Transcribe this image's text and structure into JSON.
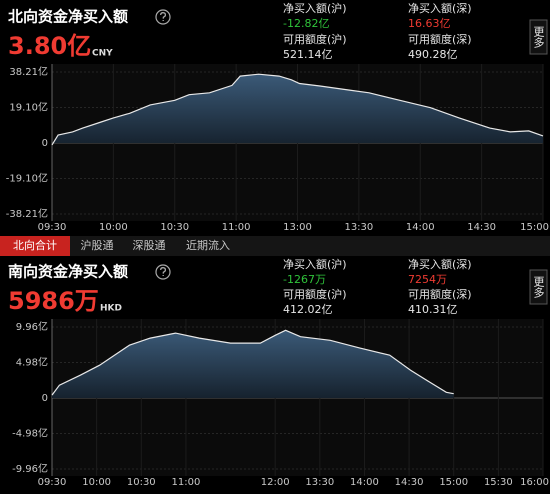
{
  "panels": [
    {
      "title": "北向资金净买入额",
      "value": "3.80亿",
      "currency": "CNY",
      "more": "更多",
      "stats": [
        {
          "label": "净买入额(沪)",
          "value": "-12.82亿"
        },
        {
          "label": "净买入额(深)",
          "value": "16.63亿"
        },
        {
          "label": "可用额度(沪)",
          "value": "521.14亿"
        },
        {
          "label": "可用额度(深)",
          "value": "490.28亿"
        }
      ]
    },
    {
      "title": "南向资金净买入额",
      "value": "5986万",
      "currency": "HKD",
      "more": "更多",
      "stats": [
        {
          "label": "净买入额(沪)",
          "value": "-1267万"
        },
        {
          "label": "净买入额(深)",
          "value": "7254万"
        },
        {
          "label": "可用额度(沪)",
          "value": "412.02亿"
        },
        {
          "label": "可用额度(深)",
          "value": "410.31亿"
        }
      ]
    }
  ],
  "tabs": [
    "北向合计",
    "沪股通",
    "深股通",
    "近期流入"
  ],
  "chart_data": [
    {
      "type": "area",
      "color": "#e8e8e8",
      "grid": true,
      "x": [
        0,
        3,
        10,
        15,
        24,
        30,
        38,
        48,
        60,
        67,
        77,
        88,
        92,
        101,
        111,
        117,
        121,
        131,
        145,
        155,
        170,
        185,
        199,
        214,
        224,
        233,
        240
      ],
      "values": [
        -1,
        4.3,
        6,
        8,
        11.3,
        13.5,
        16,
        20.5,
        23,
        26,
        27,
        31,
        36,
        37,
        36,
        34,
        32,
        30.7,
        28.5,
        27,
        23,
        19,
        13.5,
        8,
        6,
        6.5,
        3.8
      ],
      "xlim": [
        0,
        240
      ],
      "xticks": [
        {
          "value": 0,
          "label": "09:30"
        },
        {
          "value": 30,
          "label": "10:00"
        },
        {
          "value": 60,
          "label": "10:30"
        },
        {
          "value": 90,
          "label": "11:00"
        },
        {
          "value": 120,
          "label": "13:00"
        },
        {
          "value": 150,
          "label": "13:30"
        },
        {
          "value": 180,
          "label": "14:00"
        },
        {
          "value": 210,
          "label": "14:30"
        },
        {
          "value": 240,
          "label": "15:00"
        }
      ],
      "ylim": [
        -38.21,
        38.21
      ],
      "yticks": [
        {
          "value": 38.21,
          "label": "38.21亿"
        },
        {
          "value": 19.1,
          "label": "19.10亿"
        },
        0,
        {
          "value": -19.1,
          "label": "-19.10亿"
        },
        {
          "value": -38.21,
          "label": "-38.21亿"
        }
      ]
    },
    {
      "type": "area",
      "color": "#e8e8e8",
      "grid": true,
      "x": [
        0,
        5,
        19,
        32,
        52,
        66,
        83,
        99,
        120,
        140,
        150,
        157,
        167,
        187,
        207,
        227,
        241,
        254,
        265,
        270
      ],
      "values": [
        0.4,
        1.8,
        3.2,
        4.6,
        7.4,
        8.4,
        9.1,
        8.4,
        7.7,
        7.7,
        8.8,
        9.5,
        8.6,
        8.1,
        7,
        6,
        3.9,
        2.2,
        0.8,
        0.6
      ],
      "xlim": [
        0,
        330
      ],
      "xticks": [
        {
          "value": 0,
          "label": "09:30"
        },
        {
          "value": 30,
          "label": "10:00"
        },
        {
          "value": 60,
          "label": "10:30"
        },
        {
          "value": 90,
          "label": "11:00"
        },
        {
          "value": 150,
          "label": "12:00"
        },
        {
          "value": 180,
          "label": "13:30"
        },
        {
          "value": 210,
          "label": "14:00"
        },
        {
          "value": 240,
          "label": "14:30"
        },
        {
          "value": 270,
          "label": "15:00"
        },
        {
          "value": 300,
          "label": "15:30"
        },
        {
          "value": 330,
          "label": "16:00"
        }
      ],
      "ylim": [
        -9.96,
        9.96
      ],
      "yticks": [
        {
          "value": 9.96,
          "label": "9.96亿"
        },
        {
          "value": 4.98,
          "label": "4.98亿"
        },
        0,
        {
          "value": -4.98,
          "label": "-4.98亿"
        },
        {
          "value": -9.96,
          "label": "-9.96亿"
        }
      ]
    }
  ]
}
